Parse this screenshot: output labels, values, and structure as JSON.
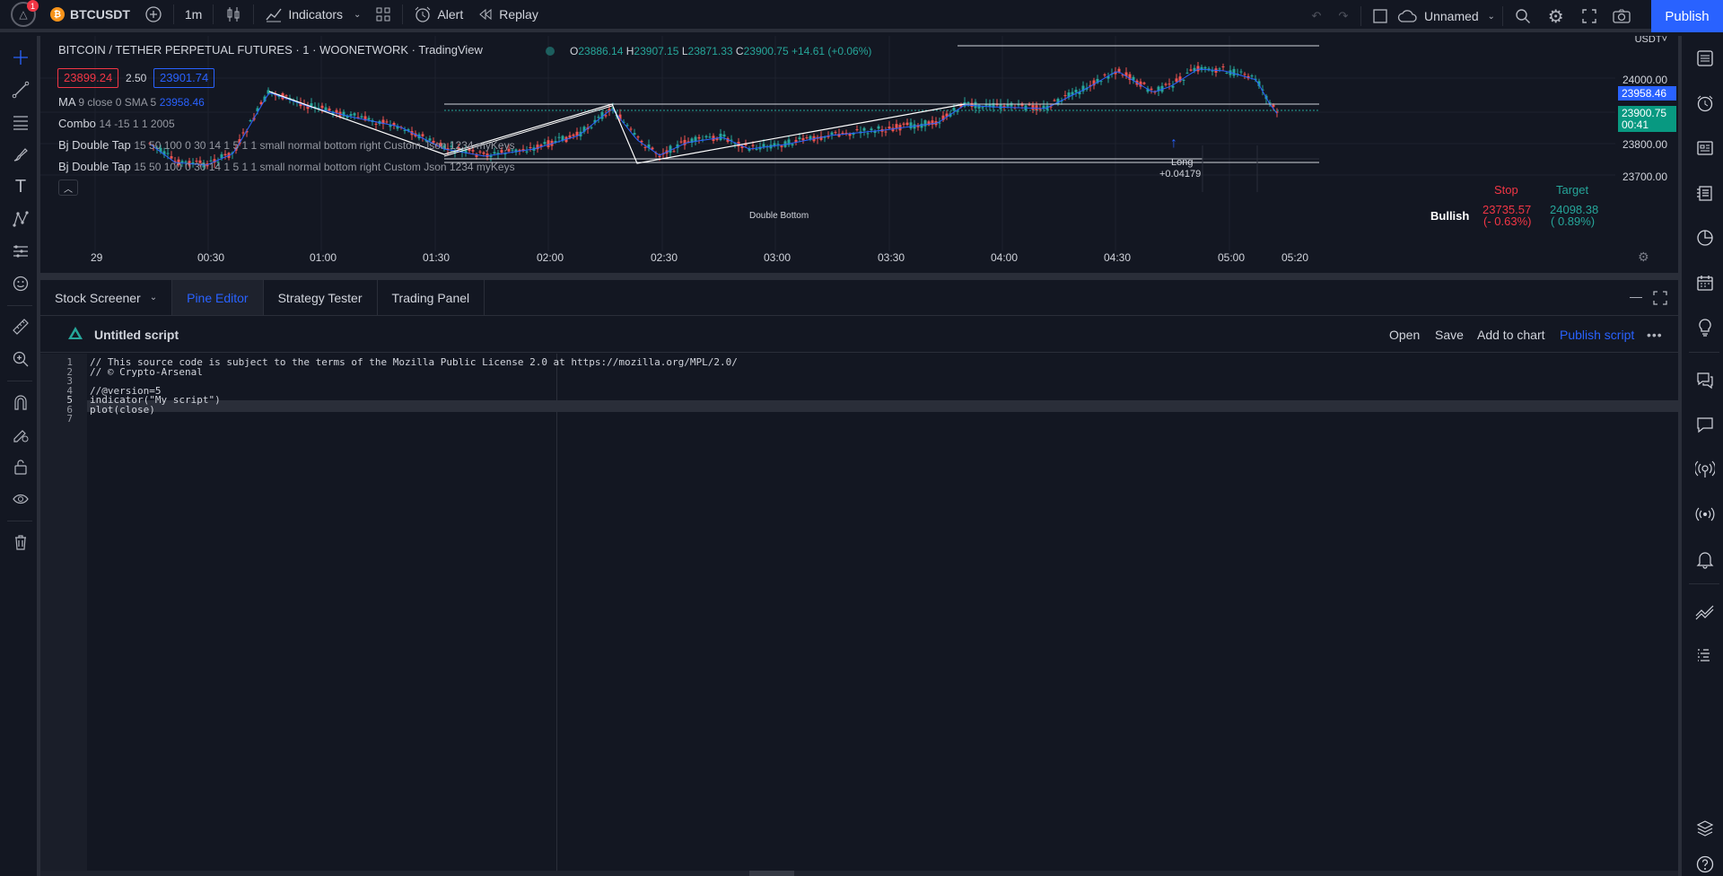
{
  "topbar": {
    "notification_count": "1",
    "symbol": "BTCUSDT",
    "interval": "1m",
    "indicators_label": "Indicators",
    "alert_label": "Alert",
    "replay_label": "Replay",
    "layout_name": "Unnamed",
    "publish_label": "Publish"
  },
  "chart": {
    "title": "BITCOIN / TETHER PERPETUAL FUTURES · 1 · WOONETWORK · TradingView",
    "ohlc": {
      "o_label": "O",
      "o": "23886.14",
      "h_label": "H",
      "h": "23907.15",
      "l_label": "L",
      "l": "23871.33",
      "c_label": "C",
      "c": "23900.75",
      "change": "+14.61 (+0.06%)"
    },
    "bid": "23899.24",
    "spread": "2.50",
    "ask": "23901.74",
    "legend_ma_name": "MA",
    "legend_ma_params": "9 close 0 SMA 5",
    "legend_ma_value": "23958.46",
    "legend_combo_name": "Combo",
    "legend_combo_params": "14 -15 1 1 2005",
    "legend_bj1_name": "Bj Double Tap",
    "legend_bj1_params": "15 50 100 0 30 14 1 5 1 1 small normal bottom right Custom Json 1234 myKeys",
    "legend_bj2_name": "Bj Double Tap",
    "legend_bj2_params": "15 50 100 0 30 14 1 5 1 1 small normal bottom right Custom Json 1234 myKeys",
    "currency": "USDT",
    "price_labels": [
      "24000.00",
      "23800.00",
      "23700.00"
    ],
    "ma_tag": "23958.46",
    "last_price_tag": "23900.75",
    "countdown": "00:41",
    "time_labels": [
      "29",
      "00:30",
      "01:00",
      "01:30",
      "02:00",
      "02:30",
      "03:00",
      "03:30",
      "04:00",
      "04:30",
      "05:00",
      "05:20"
    ],
    "pattern_label": "Double Bottom",
    "signal_label": "Long",
    "signal_value": "+0.04179",
    "bias_label": "Bullish",
    "stop_header": "Stop",
    "stop_price": "23735.57",
    "stop_pct": "(- 0.63%)",
    "target_header": "Target",
    "target_price": "24098.38",
    "target_pct": "( 0.89%)",
    "colors": {
      "up": "#26a69a",
      "down": "#ef5350",
      "ma": "#2962ff",
      "accent": "#2962ff"
    }
  },
  "panel": {
    "tabs": [
      "Stock Screener",
      "Pine Editor",
      "Strategy Tester",
      "Trading Panel"
    ],
    "active_tab": "Pine Editor",
    "script_title": "Untitled script",
    "actions": {
      "open": "Open",
      "save": "Save",
      "add_to_chart": "Add to chart",
      "publish_script": "Publish script"
    }
  },
  "editor": {
    "lines": [
      "// This source code is subject to the terms of the Mozilla Public License 2.0 at https://mozilla.org/MPL/2.0/",
      "// © Crypto-Arsenal",
      "",
      "//@version=5",
      "indicator(\"My script\")",
      "plot(close)",
      ""
    ],
    "line_numbers": [
      "1",
      "2",
      "3",
      "4",
      "5",
      "6",
      "7"
    ]
  }
}
